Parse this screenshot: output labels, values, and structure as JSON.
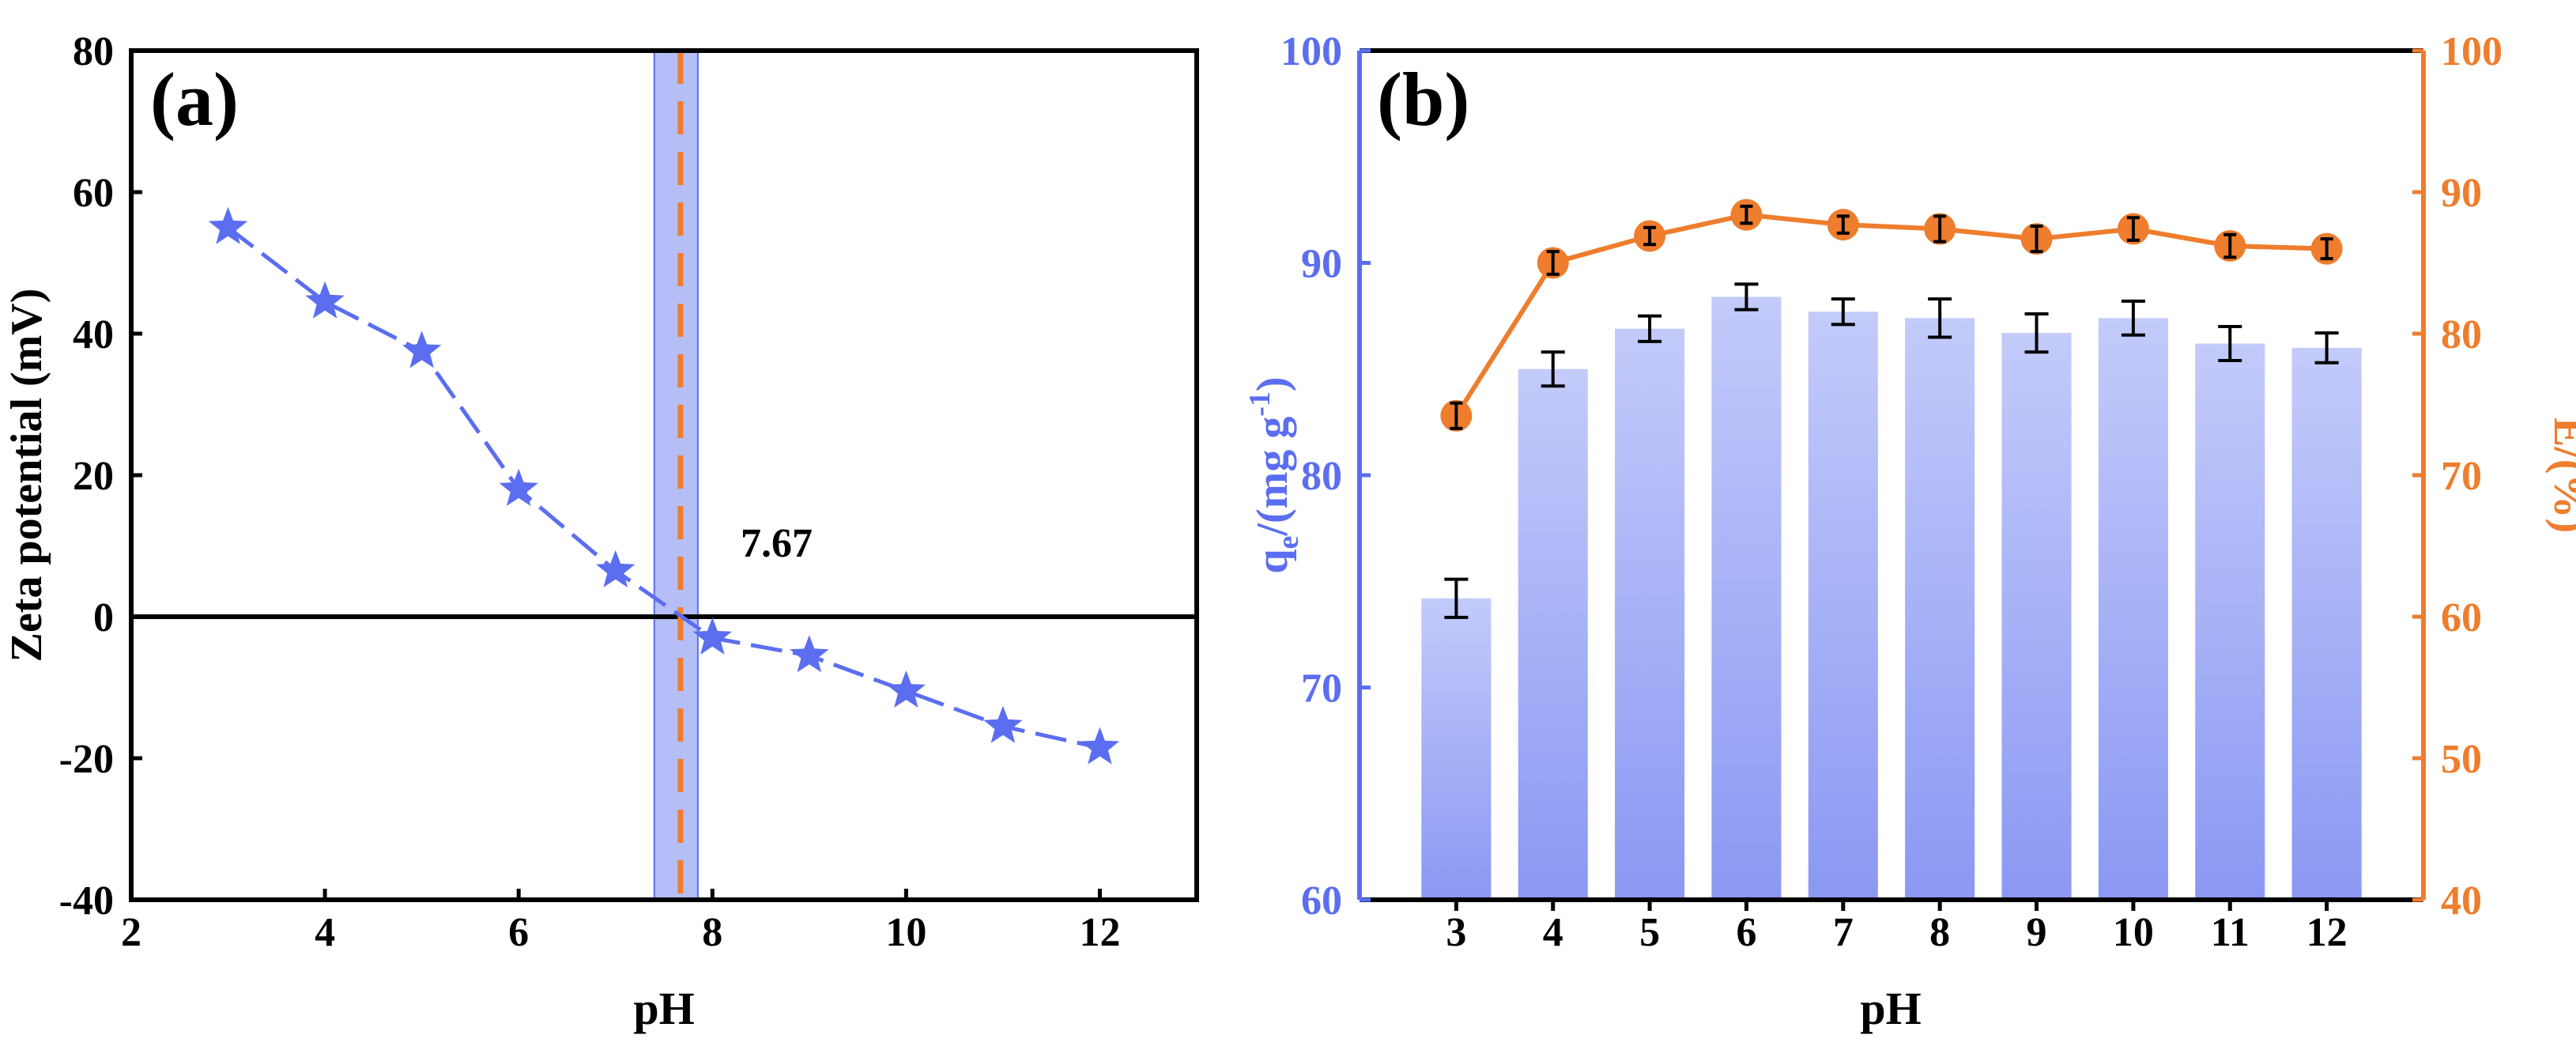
{
  "colors": {
    "blue": "#5B6EF0",
    "orange": "#EE7D2D",
    "black": "#000000",
    "band": "#8E9BF2",
    "bar_top": "#C3CBFA",
    "bar_bottom": "#8B98F3"
  },
  "chart_data": [
    {
      "type": "line",
      "panel_label": "(a)",
      "xlabel": "pH",
      "ylabel": "Zeta potential (mV)",
      "xlim": [
        2,
        13
      ],
      "ylim": [
        -40,
        80
      ],
      "xticks": [
        "2",
        "4",
        "6",
        "8",
        "10",
        "12"
      ],
      "yticks": [
        "-40",
        "-20",
        "0",
        "20",
        "40",
        "60",
        "80"
      ],
      "x": [
        3,
        4,
        5,
        6,
        7,
        8,
        9,
        10,
        11,
        12
      ],
      "y": [
        55,
        44.5,
        37.5,
        18,
        6.5,
        -3,
        -5.5,
        -10.5,
        -15.5,
        -18.5
      ],
      "marker": "star",
      "line_style": "dashed",
      "isoelectric_point": 7.67,
      "isoelectric_label": "7.67",
      "band_range": [
        7.4,
        7.85
      ]
    },
    {
      "type": "bar+line",
      "panel_label": "(b)",
      "xlabel": "pH",
      "ylabel_left": "qe/(mg g-1)",
      "ylabel_left_parts": {
        "q": "q",
        "sub": "e",
        "mid": "/(mg g",
        "sup": "-1",
        "end": ")"
      },
      "ylabel_right": "E/(%)",
      "categories": [
        "3",
        "4",
        "5",
        "6",
        "7",
        "8",
        "9",
        "10",
        "11",
        "12"
      ],
      "ylim_left": [
        60,
        100
      ],
      "ylim_right": [
        40,
        100
      ],
      "yticks_left": [
        "60",
        "70",
        "80",
        "90",
        "100"
      ],
      "yticks_right": [
        "40",
        "50",
        "60",
        "70",
        "80",
        "90",
        "100"
      ],
      "series": [
        {
          "name": "qe",
          "type": "bar",
          "axis": "left",
          "values": [
            74.2,
            85.0,
            86.9,
            88.4,
            87.7,
            87.4,
            86.7,
            87.4,
            86.2,
            86.0
          ],
          "errors": [
            0.9,
            0.8,
            0.6,
            0.6,
            0.6,
            0.9,
            0.9,
            0.8,
            0.8,
            0.7
          ]
        },
        {
          "name": "E",
          "type": "line",
          "axis": "right",
          "values": [
            74.2,
            85.0,
            86.9,
            88.4,
            87.7,
            87.4,
            86.7,
            87.4,
            86.2,
            86.0
          ],
          "errors": [
            0.9,
            0.8,
            0.6,
            0.6,
            0.6,
            0.9,
            0.9,
            0.8,
            0.8,
            0.7
          ]
        }
      ]
    }
  ]
}
